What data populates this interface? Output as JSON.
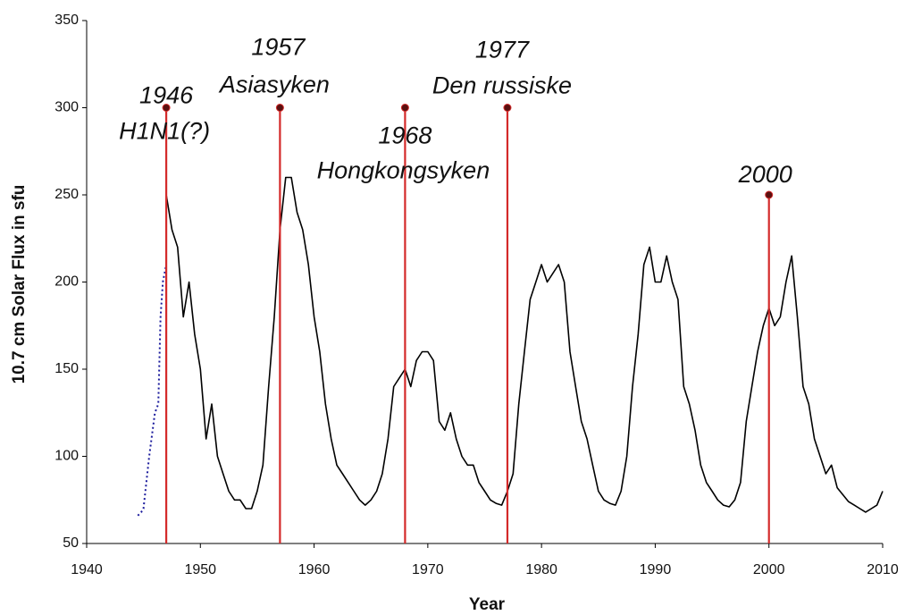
{
  "chart_data": {
    "type": "line",
    "xlabel": "Year",
    "ylabel": "10.7 cm Solar Flux in sfu",
    "xlim": [
      1940,
      2010
    ],
    "xticks": [
      1940,
      1950,
      1960,
      1970,
      1980,
      1990,
      2000,
      2010
    ],
    "ylim": [
      50,
      350
    ],
    "yticks": [
      50,
      100,
      150,
      200,
      250,
      300,
      350
    ],
    "grid": false,
    "series": [
      {
        "color": "#000000",
        "style": "solid",
        "x": [
          1947,
          1947.5,
          1948,
          1948.5,
          1949,
          1949.5,
          1950,
          1950.5,
          1951,
          1951.5,
          1952,
          1952.5,
          1953,
          1953.5,
          1954,
          1954.5,
          1955,
          1955.5,
          1956,
          1956.5,
          1957,
          1957.5,
          1958,
          1958.5,
          1959,
          1959.5,
          1960,
          1960.5,
          1961,
          1961.5,
          1962,
          1962.5,
          1963,
          1963.5,
          1964,
          1964.5,
          1965,
          1965.5,
          1966,
          1966.5,
          1967,
          1967.5,
          1968,
          1968.5,
          1969,
          1969.5,
          1970,
          1970.5,
          1971,
          1971.5,
          1972,
          1972.5,
          1973,
          1973.5,
          1974,
          1974.5,
          1975,
          1975.5,
          1976,
          1976.5,
          1977,
          1977.5,
          1978,
          1978.5,
          1979,
          1979.5,
          1980,
          1980.5,
          1981,
          1981.5,
          1982,
          1982.5,
          1983,
          1983.5,
          1984,
          1984.5,
          1985,
          1985.5,
          1986,
          1986.5,
          1987,
          1987.5,
          1988,
          1988.5,
          1989,
          1989.5,
          1990,
          1990.5,
          1991,
          1991.5,
          1992,
          1992.5,
          1993,
          1993.5,
          1994,
          1994.5,
          1995,
          1995.5,
          1996,
          1996.5,
          1997,
          1997.5,
          1998,
          1998.5,
          1999,
          1999.5,
          2000,
          2000.5,
          2001,
          2001.5,
          2002,
          2002.5,
          2003,
          2003.5,
          2004,
          2004.5,
          2005,
          2005.5,
          2006,
          2006.5,
          2007,
          2007.5,
          2008,
          2008.5,
          2009,
          2009.5,
          2010
        ],
        "values": [
          250,
          230,
          220,
          180,
          200,
          170,
          150,
          110,
          130,
          100,
          90,
          80,
          75,
          75,
          70,
          70,
          80,
          95,
          140,
          180,
          230,
          260,
          260,
          240,
          230,
          210,
          180,
          160,
          130,
          110,
          95,
          90,
          85,
          80,
          75,
          72,
          75,
          80,
          90,
          110,
          140,
          145,
          150,
          140,
          155,
          160,
          160,
          155,
          120,
          115,
          125,
          110,
          100,
          95,
          95,
          85,
          80,
          75,
          73,
          72,
          80,
          90,
          130,
          160,
          190,
          200,
          210,
          200,
          205,
          210,
          200,
          160,
          140,
          120,
          110,
          95,
          80,
          75,
          73,
          72,
          80,
          100,
          140,
          170,
          210,
          220,
          200,
          200,
          215,
          200,
          190,
          140,
          130,
          115,
          95,
          85,
          80,
          75,
          72,
          71,
          75,
          85,
          120,
          140,
          160,
          175,
          185,
          175,
          180,
          200,
          215,
          180,
          140,
          130,
          110,
          100,
          90,
          95,
          82,
          78,
          74,
          72,
          70,
          68,
          70,
          72,
          80
        ]
      },
      {
        "color": "#1a1a9c",
        "style": "dotted",
        "x": [
          1944.5,
          1944.8,
          1945,
          1945.5,
          1946,
          1946.3,
          1946.5,
          1946.7,
          1947
        ],
        "values": [
          66,
          68,
          70,
          100,
          125,
          130,
          180,
          200,
          210
        ]
      }
    ],
    "annotations": [
      {
        "x": 1947,
        "y": 300,
        "labels": [
          "1946",
          "H1N1(?)"
        ]
      },
      {
        "x": 1957,
        "y": 300,
        "labels": [
          "1957",
          "Asiasyken"
        ]
      },
      {
        "x": 1968,
        "y": 300,
        "labels": [
          "1968",
          "Hongkongsyken"
        ]
      },
      {
        "x": 1977,
        "y": 300,
        "labels": [
          "1977",
          "Den russiske"
        ]
      },
      {
        "x": 2000,
        "y": 250,
        "labels": [
          "2000"
        ]
      }
    ],
    "annotation_color": "#d42a2a"
  }
}
